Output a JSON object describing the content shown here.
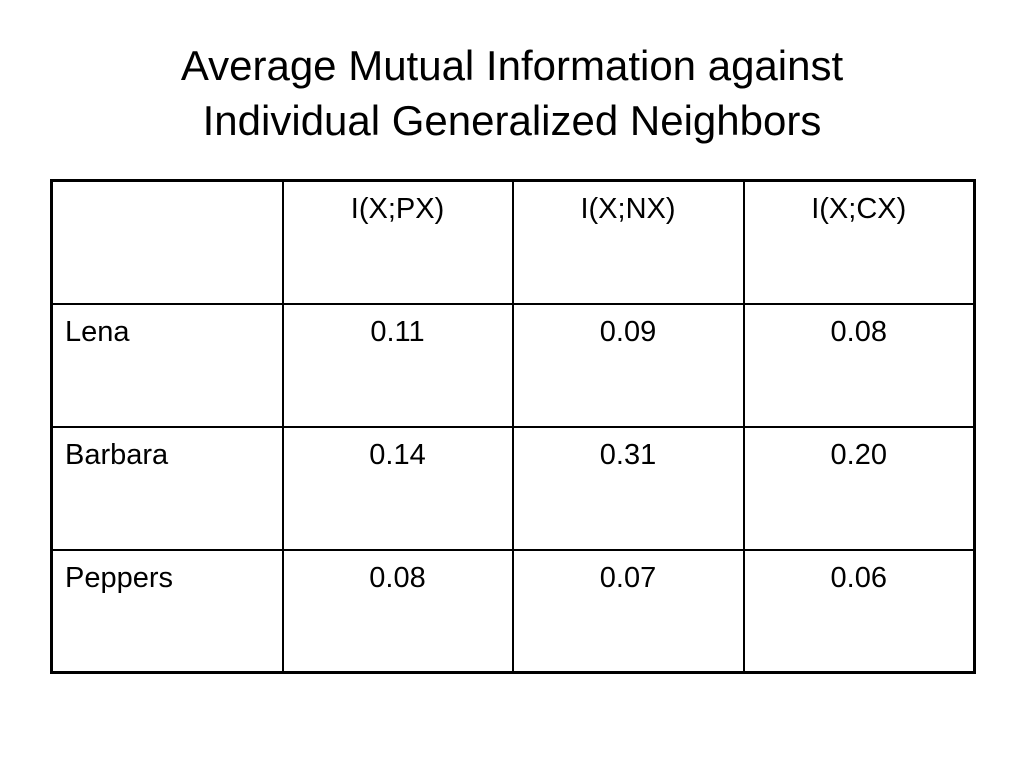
{
  "slide": {
    "title_lines": [
      "Average Mutual Information against",
      "Individual Generalized Neighbors"
    ]
  },
  "table": {
    "corner": "",
    "columns": [
      "I(X;PX)",
      "I(X;NX)",
      "I(X;CX)"
    ],
    "rows": [
      {
        "label": "Lena",
        "values": [
          "0.11",
          "0.09",
          "0.08"
        ]
      },
      {
        "label": "Barbara",
        "values": [
          "0.14",
          "0.31",
          "0.20"
        ]
      },
      {
        "label": "Peppers",
        "values": [
          "0.08",
          "0.07",
          "0.06"
        ]
      }
    ]
  }
}
